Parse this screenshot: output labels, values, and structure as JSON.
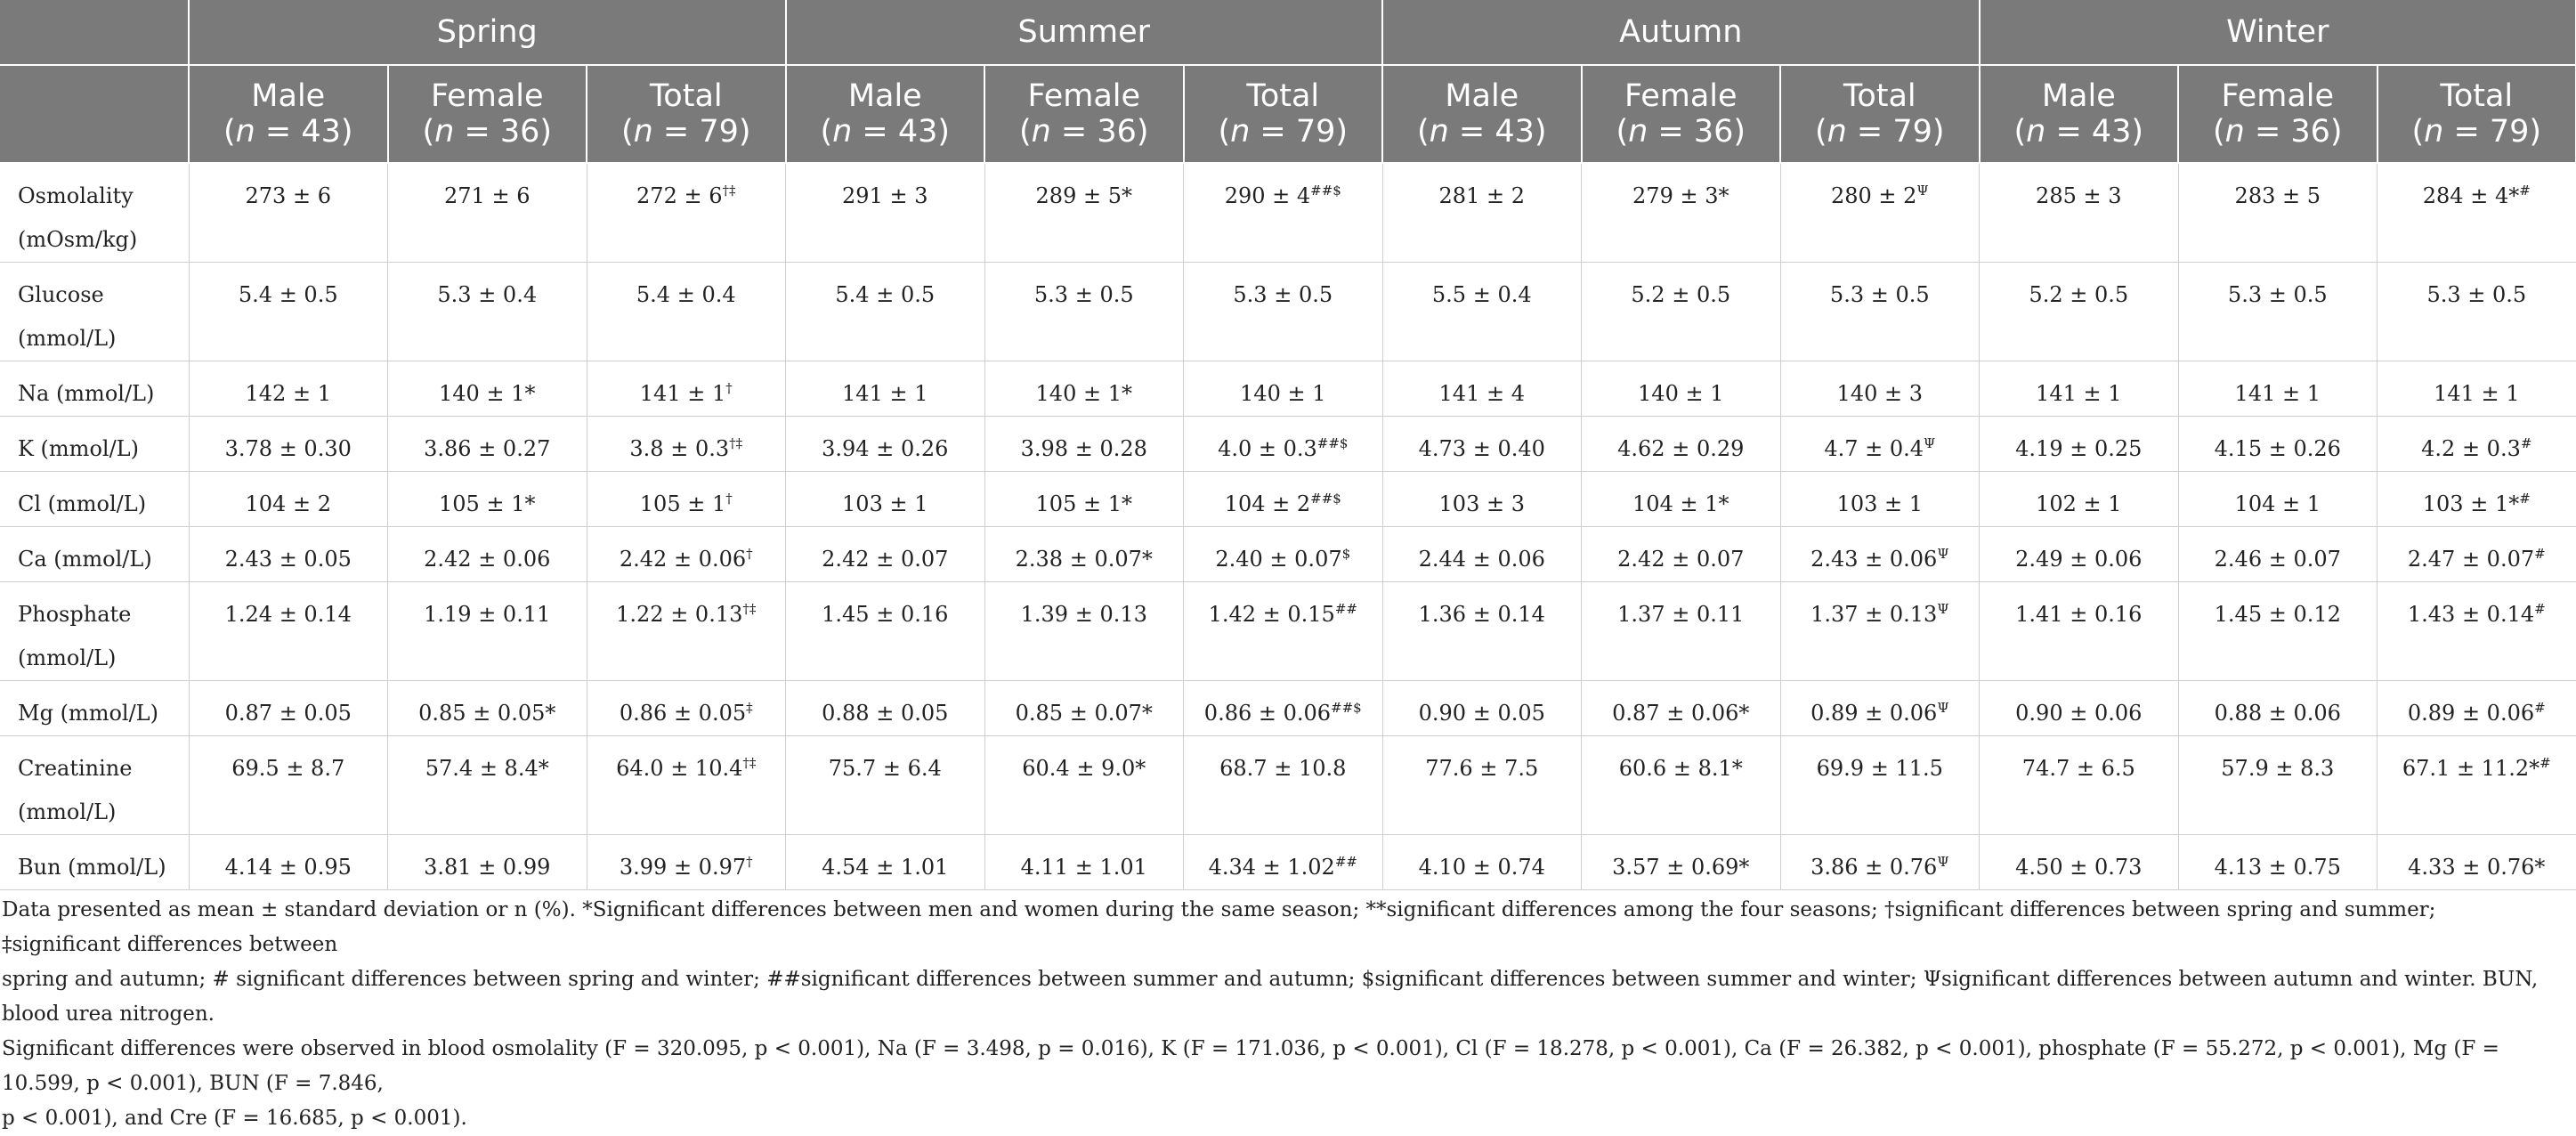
{
  "header": {
    "seasons": [
      "Spring",
      "Summer",
      "Autumn",
      "Winter"
    ],
    "groups": [
      {
        "label": "Male",
        "n_prefix": "(",
        "n_var": "n",
        "n_suffix": " = 43)"
      },
      {
        "label": "Female",
        "n_prefix": "(",
        "n_var": "n",
        "n_suffix": " = 36)"
      },
      {
        "label": "Total",
        "n_prefix": "(",
        "n_var": "n",
        "n_suffix": " = 79)"
      }
    ]
  },
  "rows": [
    {
      "label": "Osmolality (mOsm/kg)",
      "tall": true,
      "cells": [
        {
          "v": "273 ± 6"
        },
        {
          "v": "271 ± 6"
        },
        {
          "v": "272 ± 6",
          "s": "†‡"
        },
        {
          "v": "291 ± 3"
        },
        {
          "v": "289 ± 5*"
        },
        {
          "v": "290 ± 4",
          "s": "##$"
        },
        {
          "v": "281 ± 2"
        },
        {
          "v": "279 ± 3*"
        },
        {
          "v": "280 ± 2",
          "s": "Ψ"
        },
        {
          "v": "285 ± 3"
        },
        {
          "v": "283 ± 5"
        },
        {
          "v": "284 ± 4*",
          "s": "#"
        }
      ]
    },
    {
      "label": "Glucose (mmol/L)",
      "tall": true,
      "cells": [
        {
          "v": "5.4 ± 0.5"
        },
        {
          "v": "5.3 ± 0.4"
        },
        {
          "v": "5.4 ± 0.4"
        },
        {
          "v": "5.4 ± 0.5"
        },
        {
          "v": "5.3 ± 0.5"
        },
        {
          "v": "5.3 ± 0.5"
        },
        {
          "v": "5.5 ± 0.4"
        },
        {
          "v": "5.2 ± 0.5"
        },
        {
          "v": "5.3 ± 0.5"
        },
        {
          "v": "5.2 ± 0.5"
        },
        {
          "v": "5.3 ± 0.5"
        },
        {
          "v": "5.3 ± 0.5"
        }
      ]
    },
    {
      "label": "Na (mmol/L)",
      "tall": false,
      "cells": [
        {
          "v": "142 ± 1"
        },
        {
          "v": "140 ± 1*"
        },
        {
          "v": "141 ± 1",
          "s": "†"
        },
        {
          "v": "141 ± 1"
        },
        {
          "v": "140 ± 1*"
        },
        {
          "v": "140 ± 1"
        },
        {
          "v": "141 ± 4"
        },
        {
          "v": "140 ± 1"
        },
        {
          "v": "140 ± 3"
        },
        {
          "v": "141 ± 1"
        },
        {
          "v": "141 ± 1"
        },
        {
          "v": "141 ± 1"
        }
      ]
    },
    {
      "label": "K (mmol/L)",
      "tall": false,
      "cells": [
        {
          "v": "3.78 ± 0.30"
        },
        {
          "v": "3.86 ± 0.27"
        },
        {
          "v": "3.8 ± 0.3",
          "s": "†‡"
        },
        {
          "v": "3.94 ± 0.26"
        },
        {
          "v": "3.98 ± 0.28"
        },
        {
          "v": "4.0 ± 0.3",
          "s": "##$"
        },
        {
          "v": "4.73 ± 0.40"
        },
        {
          "v": "4.62 ± 0.29"
        },
        {
          "v": "4.7 ± 0.4",
          "s": "Ψ"
        },
        {
          "v": "4.19 ± 0.25"
        },
        {
          "v": "4.15 ± 0.26"
        },
        {
          "v": "4.2 ± 0.3",
          "s": "#"
        }
      ]
    },
    {
      "label": "Cl (mmol/L)",
      "tall": false,
      "cells": [
        {
          "v": "104 ± 2"
        },
        {
          "v": "105 ± 1*"
        },
        {
          "v": "105 ± 1",
          "s": "†"
        },
        {
          "v": "103 ± 1"
        },
        {
          "v": "105 ± 1*"
        },
        {
          "v": "104 ± 2",
          "s": "##$"
        },
        {
          "v": "103 ± 3"
        },
        {
          "v": "104 ± 1*"
        },
        {
          "v": "103 ± 1"
        },
        {
          "v": "102 ± 1"
        },
        {
          "v": "104 ± 1"
        },
        {
          "v": "103 ± 1*",
          "s": "#"
        }
      ]
    },
    {
      "label": "Ca (mmol/L)",
      "tall": false,
      "cells": [
        {
          "v": "2.43 ± 0.05"
        },
        {
          "v": "2.42 ± 0.06"
        },
        {
          "v": "2.42 ± 0.06",
          "s": "†"
        },
        {
          "v": "2.42 ± 0.07"
        },
        {
          "v": "2.38 ± 0.07*"
        },
        {
          "v": "2.40 ± 0.07",
          "s": "$"
        },
        {
          "v": "2.44 ± 0.06"
        },
        {
          "v": "2.42 ± 0.07"
        },
        {
          "v": "2.43 ± 0.06",
          "s": "Ψ"
        },
        {
          "v": "2.49 ± 0.06"
        },
        {
          "v": "2.46 ± 0.07"
        },
        {
          "v": "2.47 ± 0.07",
          "s": "#"
        }
      ]
    },
    {
      "label": "Phosphate (mmol/L)",
      "tall": true,
      "cells": [
        {
          "v": "1.24 ± 0.14"
        },
        {
          "v": "1.19 ± 0.11"
        },
        {
          "v": "1.22 ± 0.13",
          "s": "†‡"
        },
        {
          "v": "1.45 ± 0.16"
        },
        {
          "v": "1.39 ± 0.13"
        },
        {
          "v": "1.42 ± 0.15",
          "s": "##"
        },
        {
          "v": "1.36 ± 0.14"
        },
        {
          "v": "1.37 ± 0.11"
        },
        {
          "v": "1.37 ± 0.13",
          "s": "Ψ"
        },
        {
          "v": "1.41 ± 0.16"
        },
        {
          "v": "1.45 ± 0.12"
        },
        {
          "v": "1.43 ± 0.14",
          "s": "#"
        }
      ]
    },
    {
      "label": "Mg (mmol/L)",
      "tall": false,
      "cells": [
        {
          "v": "0.87 ± 0.05"
        },
        {
          "v": "0.85 ± 0.05*"
        },
        {
          "v": "0.86 ± 0.05",
          "s": "‡"
        },
        {
          "v": "0.88 ± 0.05"
        },
        {
          "v": "0.85 ± 0.07*"
        },
        {
          "v": "0.86 ± 0.06",
          "s": "##$"
        },
        {
          "v": "0.90 ± 0.05"
        },
        {
          "v": "0.87 ± 0.06*"
        },
        {
          "v": "0.89 ± 0.06",
          "s": "Ψ"
        },
        {
          "v": "0.90 ± 0.06"
        },
        {
          "v": "0.88 ± 0.06"
        },
        {
          "v": "0.89 ± 0.06",
          "s": "#"
        }
      ]
    },
    {
      "label": "Creatinine (mmol/L)",
      "tall": true,
      "cells": [
        {
          "v": "69.5 ± 8.7"
        },
        {
          "v": "57.4 ± 8.4*"
        },
        {
          "v": "64.0 ± 10.4",
          "s": "†‡"
        },
        {
          "v": "75.7 ± 6.4"
        },
        {
          "v": "60.4 ± 9.0*"
        },
        {
          "v": "68.7 ± 10.8"
        },
        {
          "v": "77.6 ± 7.5"
        },
        {
          "v": "60.6 ± 8.1*"
        },
        {
          "v": "69.9 ± 11.5"
        },
        {
          "v": "74.7 ± 6.5"
        },
        {
          "v": "57.9 ± 8.3"
        },
        {
          "v": "67.1 ± 11.2*",
          "s": "#"
        }
      ]
    },
    {
      "label": "Bun (mmol/L)",
      "tall": false,
      "cells": [
        {
          "v": "4.14 ± 0.95"
        },
        {
          "v": "3.81 ± 0.99"
        },
        {
          "v": "3.99 ± 0.97",
          "s": "†"
        },
        {
          "v": "4.54 ± 1.01"
        },
        {
          "v": "4.11 ± 1.01"
        },
        {
          "v": "4.34 ± 1.02",
          "s": "##"
        },
        {
          "v": "4.10 ± 0.74"
        },
        {
          "v": "3.57 ± 0.69*"
        },
        {
          "v": "3.86 ± 0.76",
          "s": "Ψ"
        },
        {
          "v": "4.50 ± 0.73"
        },
        {
          "v": "4.13 ± 0.75"
        },
        {
          "v": "4.33 ± 0.76*"
        }
      ]
    }
  ],
  "note": {
    "line1": "Data presented as mean ± standard deviation or n (%). *Significant differences between men and women during the same season; **significant differences among the four seasons; †significant differences between spring and summer; ‡significant differences between",
    "line2": "spring and autumn; # significant differences between spring and winter; ##significant differences between summer and autumn; $significant differences between summer and winter; Ψsignificant differences between autumn and winter. BUN, blood urea nitrogen.",
    "line3": "Significant differences were observed in blood osmolality (F = 320.095, p < 0.001), Na (F = 3.498, p = 0.016), K (F = 171.036, p < 0.001), Cl (F = 18.278, p < 0.001), Ca (F = 26.382, p < 0.001), phosphate (F = 55.272, p < 0.001), Mg (F = 10.599, p < 0.001), BUN (F = 7.846,",
    "line4": "p < 0.001), and Cre (F = 16.685, p < 0.001)."
  }
}
